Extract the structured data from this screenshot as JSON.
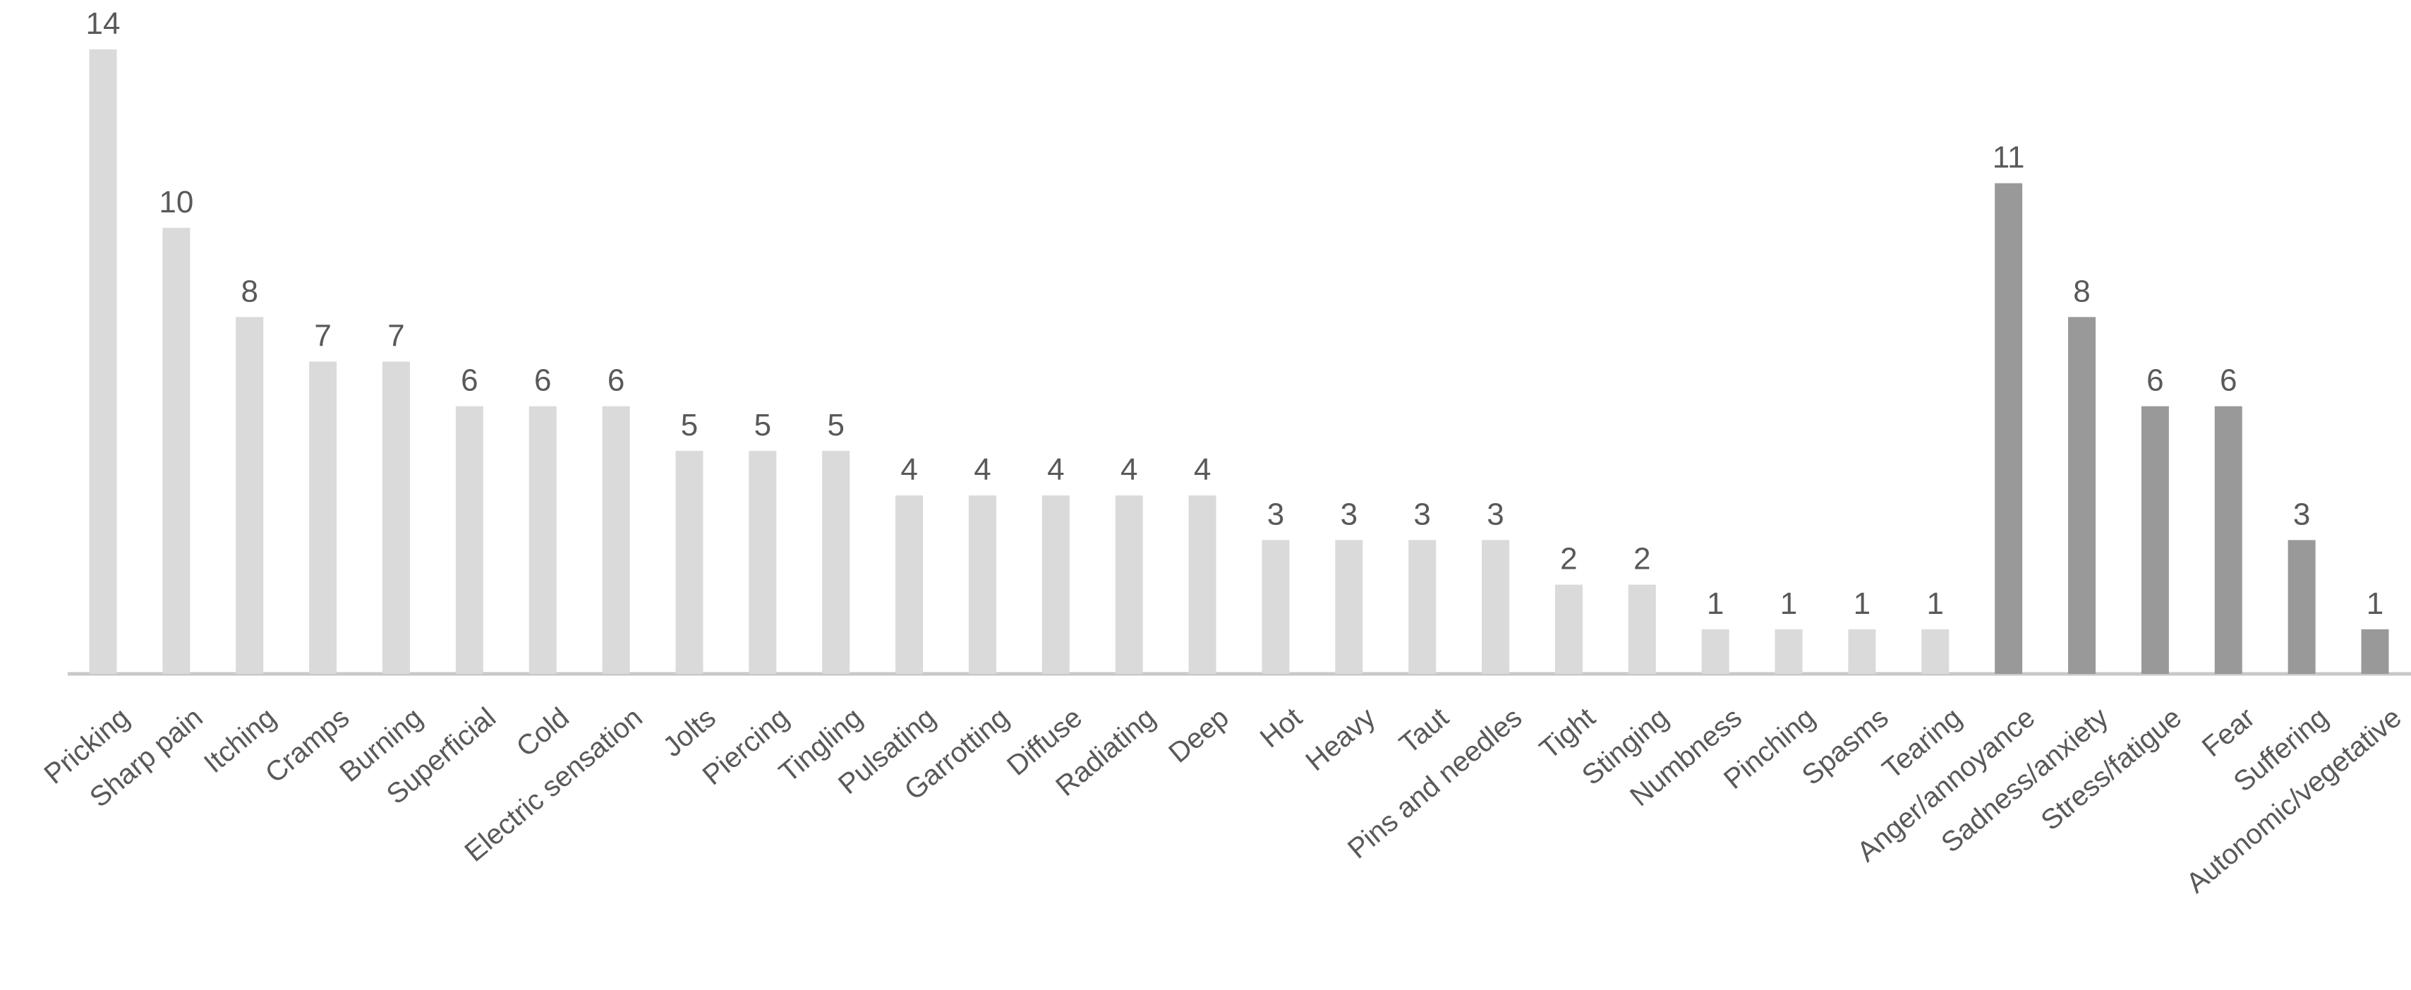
{
  "chart_data": {
    "type": "bar",
    "categories": [
      "Pricking",
      "Sharp pain",
      "Itching",
      "Cramps",
      "Burning",
      "Superficial",
      "Cold",
      "Electric sensation",
      "Jolts",
      "Piercing",
      "Tingling",
      "Pulsating",
      "Garrotting",
      "Diffuse",
      "Radiating",
      "Deep",
      "Hot",
      "Heavy",
      "Taut",
      "Pins and needles",
      "Tight",
      "Stinging",
      "Numbness",
      "Pinching",
      "Spasms",
      "Tearing",
      "Anger/annoyance",
      "Sadness/anxiety",
      "Stress/fatigue",
      "Fear",
      "Suffering",
      "Autonomic/vegetative"
    ],
    "values": [
      14,
      10,
      8,
      7,
      7,
      6,
      6,
      6,
      5,
      5,
      5,
      4,
      4,
      4,
      4,
      4,
      3,
      3,
      3,
      3,
      2,
      2,
      1,
      1,
      1,
      1,
      11,
      8,
      6,
      6,
      3,
      1
    ],
    "colors": [
      "#dadada",
      "#dadada",
      "#dadada",
      "#dadada",
      "#dadada",
      "#dadada",
      "#dadada",
      "#dadada",
      "#dadada",
      "#dadada",
      "#dadada",
      "#dadada",
      "#dadada",
      "#dadada",
      "#dadada",
      "#dadada",
      "#dadada",
      "#dadada",
      "#dadada",
      "#dadada",
      "#dadada",
      "#dadada",
      "#dadada",
      "#dadada",
      "#dadada",
      "#dadada",
      "#999999",
      "#999999",
      "#999999",
      "#999999",
      "#999999",
      "#999999"
    ],
    "ylim": [
      0,
      14
    ]
  }
}
